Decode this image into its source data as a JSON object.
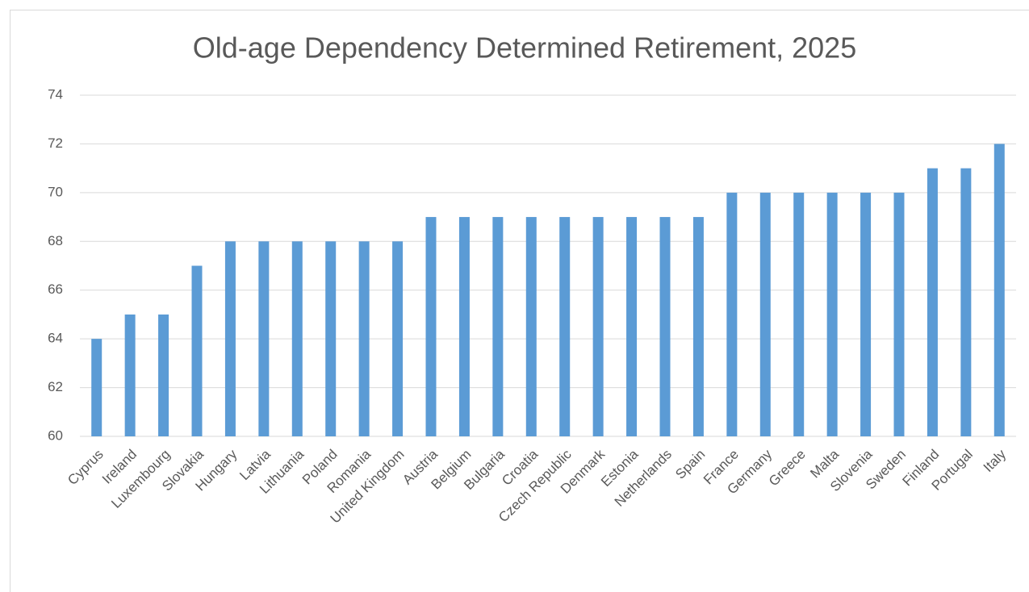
{
  "chart_data": {
    "type": "bar",
    "title": "Old-age Dependency Determined Retirement, 2025",
    "categories": [
      "Cyprus",
      "Ireland",
      "Luxembourg",
      "Slovakia",
      "Hungary",
      "Latvia",
      "Lithuania",
      "Poland",
      "Romania",
      "United Kingdom",
      "Austria",
      "Belgium",
      "Bulgaria",
      "Croatia",
      "Czech Republic",
      "Denmark",
      "Estonia",
      "Netherlands",
      "Spain",
      "France",
      "Germany",
      "Greece",
      "Malta",
      "Slovenia",
      "Sweden",
      "Finland",
      "Portugal",
      "Italy"
    ],
    "values": [
      64,
      65,
      65,
      67,
      68,
      68,
      68,
      68,
      68,
      68,
      69,
      69,
      69,
      69,
      69,
      69,
      69,
      69,
      69,
      70,
      70,
      70,
      70,
      70,
      70,
      71,
      71,
      72
    ],
    "color": "#5b9bd5",
    "ylim": [
      60,
      74
    ],
    "yticks": [
      60,
      62,
      64,
      66,
      68,
      70,
      72,
      74
    ],
    "grid": true
  }
}
